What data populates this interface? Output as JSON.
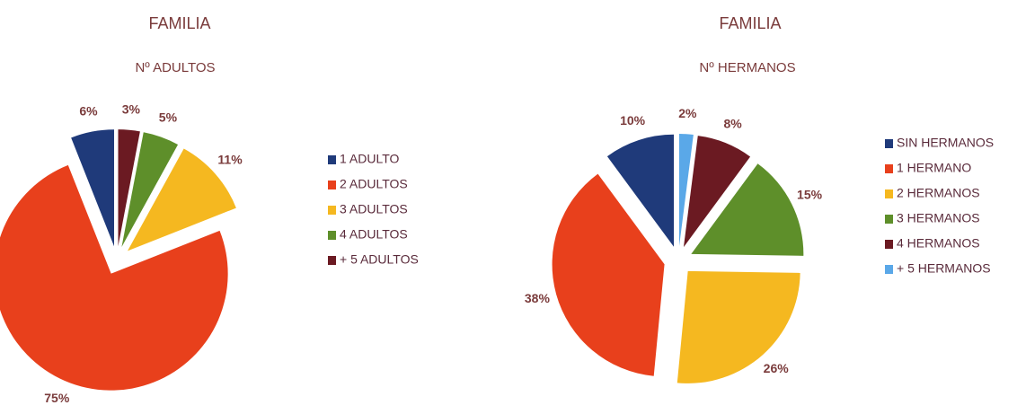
{
  "chart_data": [
    {
      "type": "pie",
      "title": "FAMILIA",
      "subtitle": "Nº ADULTOS",
      "categories": [
        "1 ADULTO",
        "2 ADULTOS",
        "3 ADULTOS",
        "4 ADULTOS",
        "+ 5 ADULTOS"
      ],
      "values": [
        6,
        75,
        11,
        5,
        3
      ],
      "value_labels": [
        "6%",
        "75%",
        "11%",
        "5%",
        "3%"
      ],
      "colors": [
        "#1f3a7a",
        "#e8401c",
        "#f5b820",
        "#5e8f2a",
        "#6b1a22"
      ]
    },
    {
      "type": "pie",
      "title": "FAMILIA",
      "subtitle": "Nº HERMANOS",
      "categories": [
        "SIN HERMANOS",
        "1 HERMANO",
        "2 HERMANOS",
        "3 HERMANOS",
        "4 HERMANOS",
        "+ 5 HERMANOS"
      ],
      "values": [
        10,
        38,
        26,
        15,
        8,
        2
      ],
      "value_labels": [
        "10%",
        "38%",
        "26%",
        "15%",
        "8%",
        "2%"
      ],
      "colors": [
        "#1f3a7a",
        "#e8401c",
        "#f5b820",
        "#5e8f2a",
        "#6b1a22",
        "#5aa8e8"
      ]
    }
  ]
}
